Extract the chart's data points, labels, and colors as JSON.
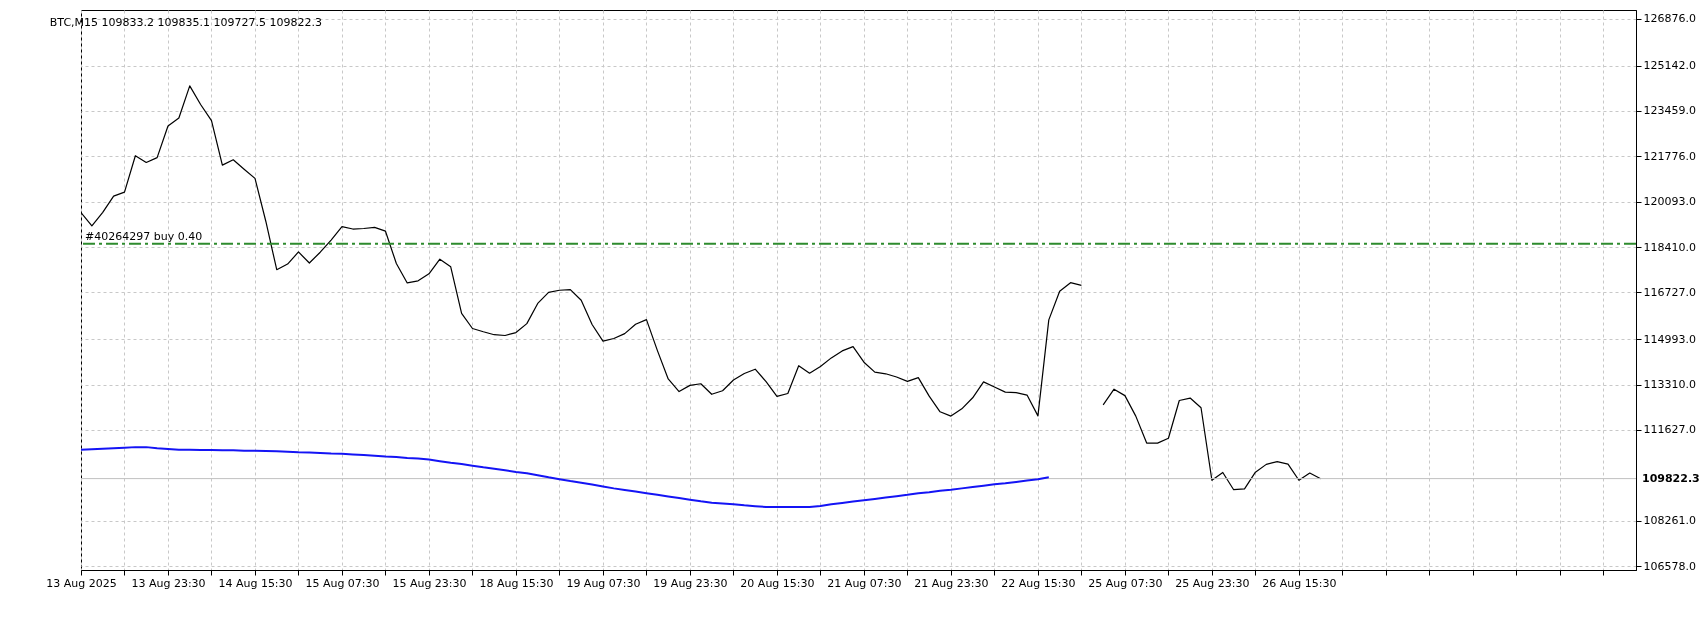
{
  "chart_data": {
    "type": "line",
    "title": "BTC,M15 109833.2 109835.1 109727.5 109822.3",
    "categories": [
      "13 Aug 2025",
      null,
      null,
      null,
      null,
      null,
      null,
      null,
      "13 Aug 23:30",
      null,
      null,
      null,
      null,
      null,
      null,
      null,
      "14 Aug 15:30",
      null,
      null,
      null,
      null,
      null,
      null,
      null,
      "15 Aug 07:30",
      null,
      null,
      null,
      null,
      null,
      null,
      null,
      "15 Aug 23:30",
      null,
      null,
      null,
      null,
      null,
      null,
      null,
      "18 Aug 15:30",
      null,
      null,
      null,
      null,
      null,
      null,
      null,
      "19 Aug 07:30",
      null,
      null,
      null,
      null,
      null,
      null,
      null,
      "19 Aug 23:30",
      null,
      null,
      null,
      null,
      null,
      null,
      null,
      "20 Aug 15:30",
      null,
      null,
      null,
      null,
      null,
      null,
      null,
      "21 Aug 07:30",
      null,
      null,
      null,
      null,
      null,
      null,
      null,
      "21 Aug 23:30",
      null,
      null,
      null,
      null,
      null,
      null,
      null,
      "22 Aug 15:30",
      null,
      null,
      null,
      null,
      null,
      null,
      null,
      "25 Aug 07:30",
      null,
      null,
      null,
      null,
      null,
      null,
      null,
      "25 Aug 23:30",
      null,
      null,
      null,
      null,
      null,
      null,
      null,
      "26 Aug 15:30",
      null,
      null,
      null,
      null,
      null,
      null,
      null,
      null,
      null,
      null,
      null,
      null,
      null,
      null,
      null,
      null,
      null,
      null,
      null,
      null,
      null,
      null,
      null,
      null,
      null,
      null,
      null,
      null,
      null,
      null,
      null
    ],
    "ylim": [
      106432,
      127205
    ],
    "yticks": [
      {
        "value": 106578,
        "label": "106578.0"
      },
      {
        "value": 108261,
        "label": "108261.0"
      },
      {
        "value": 111627,
        "label": "111627.0"
      },
      {
        "value": 113310,
        "label": "113310.0"
      },
      {
        "value": 114993,
        "label": "114993.0"
      },
      {
        "value": 116727,
        "label": "116727.0"
      },
      {
        "value": 118410,
        "label": "118410.0"
      },
      {
        "value": 120093,
        "label": "120093.0"
      },
      {
        "value": 121776,
        "label": "121776.0"
      },
      {
        "value": 123459,
        "label": "123459.0"
      },
      {
        "value": 125142,
        "label": "125142.0"
      },
      {
        "value": 126876,
        "label": "126876.0"
      }
    ],
    "grid": true,
    "legend": false,
    "ref_lines": [
      {
        "axis": "y",
        "value": 118530,
        "label": "#40264297 buy 0.40",
        "color": "#2e8b2e",
        "line_style": "dashed"
      },
      {
        "axis": "y",
        "value": 109822.3,
        "label": "109822.3",
        "color": "#c0c0c0",
        "line_style": "solid"
      }
    ],
    "series": [
      {
        "color": "#000000",
        "values": [
          119690,
          119200,
          119700,
          120300,
          120450,
          121800,
          121550,
          121730,
          122900,
          123200,
          124390,
          123700,
          123100,
          121450,
          121650,
          121300,
          120960,
          119360,
          117570,
          117780,
          118230,
          117820,
          118220,
          118670,
          119170,
          119080,
          119100,
          119140,
          119000,
          117800,
          117080,
          117160,
          117420,
          117960,
          117680,
          115950,
          115390,
          115270,
          115160,
          115130,
          115240,
          115570,
          116320,
          116730,
          116810,
          116830,
          116440,
          115540,
          114920,
          115020,
          115200,
          115550,
          115720,
          114580,
          113520,
          113050,
          113280,
          113340,
          112950,
          113080,
          113480,
          113720,
          113880,
          113420,
          112870,
          112980,
          114010,
          113730,
          113980,
          114300,
          114560,
          114720,
          114140,
          113770,
          113710,
          113590,
          113430,
          113570,
          112880,
          112300,
          112140,
          112410,
          112820,
          113410,
          113220,
          113030,
          113010,
          112920,
          112150,
          115710,
          116770,
          117090,
          116990,
          null,
          112560,
          113140,
          112900,
          112140,
          111140,
          111140,
          111320,
          112720,
          112810,
          112450,
          109760,
          110050,
          109410,
          109440,
          110060,
          110350,
          110450,
          110360,
          109760,
          110030,
          109820,
          null,
          null,
          null,
          null,
          null,
          null,
          null,
          null,
          null,
          null,
          null,
          null,
          null,
          null,
          null,
          null,
          null,
          null,
          null,
          null,
          null,
          null,
          null,
          null,
          null,
          null,
          null,
          null,
          null
        ]
      },
      {
        "color": "#1414f5",
        "values": [
          110890,
          110910,
          110930,
          110950,
          110970,
          110990,
          110990,
          110950,
          110920,
          110890,
          110890,
          110880,
          110880,
          110870,
          110870,
          110860,
          110860,
          110850,
          110840,
          110820,
          110800,
          110790,
          110770,
          110750,
          110740,
          110720,
          110700,
          110670,
          110640,
          110620,
          110590,
          110570,
          110530,
          110470,
          110410,
          110360,
          110300,
          110240,
          110190,
          110130,
          110070,
          110020,
          109950,
          109870,
          109800,
          109730,
          109670,
          109600,
          109530,
          109460,
          109400,
          109340,
          109280,
          109220,
          109160,
          109100,
          109040,
          108980,
          108930,
          108900,
          108870,
          108830,
          108800,
          108770,
          108770,
          108770,
          108770,
          108770,
          108810,
          108870,
          108920,
          108970,
          109020,
          109070,
          109120,
          109170,
          109220,
          109280,
          109320,
          109370,
          109410,
          109460,
          109510,
          109560,
          109610,
          109650,
          109700,
          109750,
          109800,
          109870,
          null,
          null,
          null,
          null,
          null,
          null,
          null,
          null,
          null,
          null,
          null,
          null,
          null,
          null,
          null,
          null,
          null,
          null,
          null,
          null,
          null,
          null,
          null,
          null,
          null,
          null,
          null,
          null,
          null,
          null,
          null,
          null,
          null,
          null,
          null,
          null,
          null,
          null,
          null,
          null,
          null,
          null,
          null,
          null,
          null,
          null,
          null,
          null,
          null,
          null,
          null,
          null,
          null,
          null
        ]
      }
    ]
  }
}
